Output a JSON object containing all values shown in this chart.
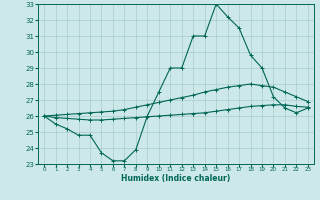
{
  "xlabel": "Humidex (Indice chaleur)",
  "bg_color": "#cce8e8",
  "line_color": "#006655",
  "grid_color": "#aacccc",
  "xlim": [
    -0.5,
    23.5
  ],
  "ylim": [
    23,
    33
  ],
  "xticks": [
    0,
    1,
    2,
    3,
    4,
    5,
    6,
    7,
    8,
    9,
    10,
    11,
    12,
    13,
    14,
    15,
    16,
    17,
    18,
    19,
    20,
    21,
    22,
    23
  ],
  "yticks": [
    23,
    24,
    25,
    26,
    27,
    28,
    29,
    30,
    31,
    32,
    33
  ],
  "x": [
    0,
    1,
    2,
    3,
    4,
    5,
    6,
    7,
    8,
    9,
    10,
    11,
    12,
    13,
    14,
    15,
    16,
    17,
    18,
    19,
    20,
    21,
    22,
    23
  ],
  "line_main": [
    26,
    25.5,
    25.2,
    24.8,
    24.8,
    23.7,
    23.2,
    23.2,
    23.9,
    26.0,
    27.5,
    29.0,
    29.0,
    31.0,
    31.0,
    33.0,
    32.2,
    31.5,
    29.8,
    29.0,
    27.2,
    26.5,
    26.2,
    26.5
  ],
  "line_upper": [
    26.0,
    26.05,
    26.1,
    26.15,
    26.2,
    26.25,
    26.3,
    26.4,
    26.55,
    26.7,
    26.85,
    27.0,
    27.15,
    27.3,
    27.5,
    27.65,
    27.8,
    27.9,
    28.0,
    27.9,
    27.8,
    27.5,
    27.2,
    26.9
  ],
  "line_lower": [
    26.0,
    25.9,
    25.85,
    25.8,
    25.75,
    25.75,
    25.8,
    25.85,
    25.9,
    25.95,
    26.0,
    26.05,
    26.1,
    26.15,
    26.2,
    26.3,
    26.4,
    26.5,
    26.6,
    26.65,
    26.7,
    26.7,
    26.6,
    26.55
  ]
}
